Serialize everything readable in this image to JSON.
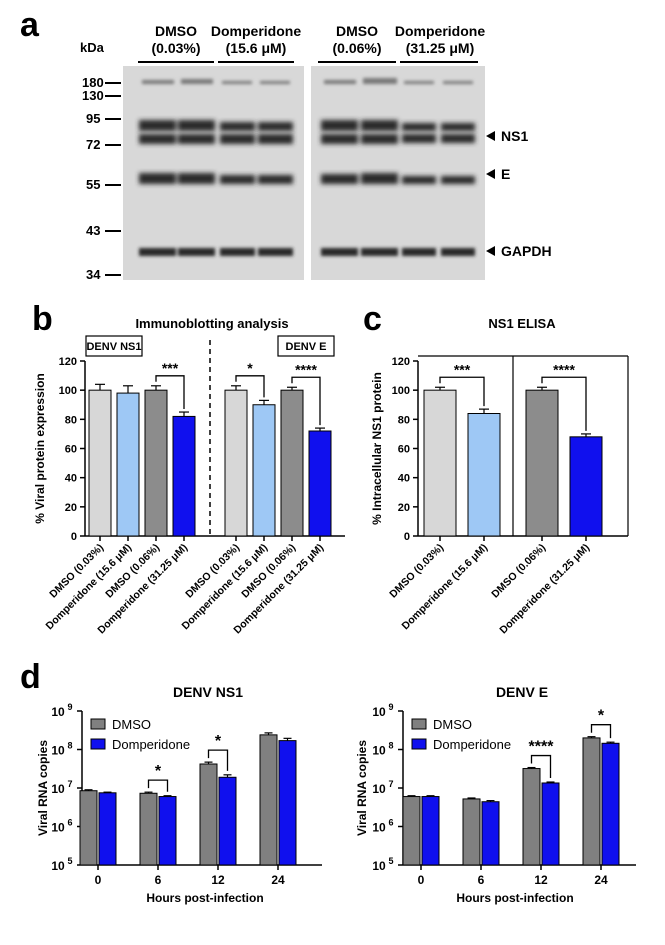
{
  "panels": {
    "a": "a",
    "b": "b",
    "c": "c",
    "d": "d"
  },
  "blot": {
    "kda_label": "kDa",
    "markers": [
      "180",
      "130",
      "95",
      "72",
      "55",
      "43",
      "34"
    ],
    "groups": [
      {
        "line1": "DMSO",
        "line2": "(0.03%)"
      },
      {
        "line1": "Domperidone",
        "line2": "(15.6 μM)"
      },
      {
        "line1": "DMSO",
        "line2": "(0.06%)"
      },
      {
        "line1": "Domperidone",
        "line2": "(31.25 μM)"
      }
    ],
    "band_labels": [
      "NS1",
      "E",
      "GAPDH"
    ]
  },
  "chart_data": [
    {
      "type": "bar",
      "title": "Immunoblotting analysis",
      "ylabel": "% Viral protein expression",
      "ylim": [
        0,
        120
      ],
      "yticks": [
        "0",
        "20",
        "40",
        "60",
        "80",
        "100",
        "120"
      ],
      "box_labels": [
        "DENV NS1",
        "DENV E"
      ],
      "categories": [
        "DMSO (0.03%)",
        "Domperidone (15.6 μM)",
        "DMSO (0.06%)",
        "Domperidone (31.25 μM)",
        "DMSO (0.03%)",
        "Domperidone (15.6 μM)",
        "DMSO (0.06%)",
        "Domperidone (31.25 μM)"
      ],
      "values": [
        100,
        98,
        100,
        82,
        100,
        90,
        100,
        72
      ],
      "errors": [
        4,
        5,
        3,
        3,
        3,
        3,
        2,
        2
      ],
      "colors": [
        "#d7d7d7",
        "#9ec8f5",
        "#8c8c8c",
        "#1010ee",
        "#d7d7d7",
        "#9ec8f5",
        "#8c8c8c",
        "#1010ee"
      ],
      "significance": [
        {
          "from": 2,
          "to": 3,
          "label": "***"
        },
        {
          "from": 4,
          "to": 5,
          "label": "*"
        },
        {
          "from": 6,
          "to": 7,
          "label": "****"
        }
      ]
    },
    {
      "type": "bar",
      "title": "NS1 ELISA",
      "ylabel": "% Intracellular NS1 protein",
      "ylim": [
        0,
        120
      ],
      "yticks": [
        "0",
        "20",
        "40",
        "60",
        "80",
        "100",
        "120"
      ],
      "categories": [
        "DMSO (0.03%)",
        "Domperidone (15.6 μM)",
        "DMSO (0.06%)",
        "Domperidone (31.25 μM)"
      ],
      "values": [
        100,
        84,
        100,
        68
      ],
      "errors": [
        2,
        3,
        2,
        2
      ],
      "colors": [
        "#d7d7d7",
        "#9ec8f5",
        "#8c8c8c",
        "#1010ee"
      ],
      "significance": [
        {
          "from": 0,
          "to": 1,
          "label": "***"
        },
        {
          "from": 2,
          "to": 3,
          "label": "****"
        }
      ]
    },
    {
      "type": "bar",
      "title": "DENV NS1",
      "xlabel": "Hours post-infection",
      "ylabel": "Viral RNA copies",
      "yscale": "log",
      "ylim": [
        100000,
        1000000000
      ],
      "yticks": [
        "5",
        "6",
        "7",
        "8",
        "9"
      ],
      "categories": [
        "0",
        "6",
        "12",
        "24"
      ],
      "series": [
        {
          "name": "DMSO",
          "color": "#808080",
          "values": [
            8500000,
            7300000,
            42000000,
            240000000
          ],
          "errors": [
            500000,
            500000,
            5000000,
            30000000
          ]
        },
        {
          "name": "Domperidone",
          "color": "#1010ee",
          "values": [
            7500000,
            6000000,
            19000000,
            170000000
          ],
          "errors": [
            300000,
            300000,
            3000000,
            25000000
          ]
        }
      ],
      "significance": [
        {
          "category": 1,
          "label": "*"
        },
        {
          "category": 2,
          "label": "*"
        }
      ]
    },
    {
      "type": "bar",
      "title": "DENV E",
      "xlabel": "Hours post-infection",
      "ylabel": "Viral RNA copies",
      "yscale": "log",
      "ylim": [
        100000,
        1000000000
      ],
      "yticks": [
        "5",
        "6",
        "7",
        "8",
        "9"
      ],
      "categories": [
        "0",
        "6",
        "12",
        "24"
      ],
      "series": [
        {
          "name": "DMSO",
          "color": "#808080",
          "values": [
            6000000,
            5200000,
            32000000,
            200000000
          ],
          "errors": [
            300000,
            300000,
            2000000,
            15000000
          ]
        },
        {
          "name": "Domperidone",
          "color": "#1010ee",
          "values": [
            6000000,
            4400000,
            13500000,
            145000000
          ],
          "errors": [
            300000,
            300000,
            800000,
            10000000
          ]
        }
      ],
      "significance": [
        {
          "category": 2,
          "label": "****"
        },
        {
          "category": 3,
          "label": "*"
        }
      ]
    }
  ]
}
